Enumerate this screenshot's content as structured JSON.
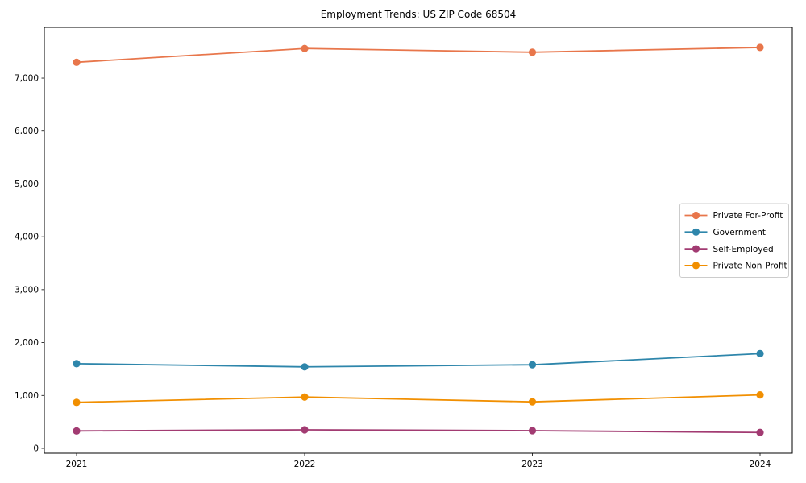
{
  "chart_data": {
    "type": "line",
    "title": "Employment Trends: US ZIP Code 68504",
    "xlabel": "",
    "ylabel": "",
    "categories": [
      "2021",
      "2022",
      "2023",
      "2024"
    ],
    "series": [
      {
        "name": "Private For-Profit",
        "color": "#e8764b",
        "values": [
          7300,
          7560,
          7490,
          7580
        ]
      },
      {
        "name": "Government",
        "color": "#2e86ab",
        "values": [
          1600,
          1540,
          1580,
          1790
        ]
      },
      {
        "name": "Self-Employed",
        "color": "#a23b72",
        "values": [
          330,
          350,
          335,
          300
        ]
      },
      {
        "name": "Private Non-Profit",
        "color": "#f18f01",
        "values": [
          870,
          970,
          880,
          1010
        ]
      }
    ],
    "yticks": [
      {
        "value": 0,
        "label": "0"
      },
      {
        "value": 1000,
        "label": "1,000"
      },
      {
        "value": 2000,
        "label": "2,000"
      },
      {
        "value": 3000,
        "label": "3,000"
      },
      {
        "value": 4000,
        "label": "4,000"
      },
      {
        "value": 5000,
        "label": "5,000"
      },
      {
        "value": 6000,
        "label": "6,000"
      },
      {
        "value": 7000,
        "label": "7,000"
      }
    ],
    "ylim": [
      -90,
      7960
    ],
    "grid": false,
    "legend_position": "center right",
    "axis_color": "#000000",
    "background_color": "#ffffff",
    "legend_border_color": "#cccccc"
  }
}
